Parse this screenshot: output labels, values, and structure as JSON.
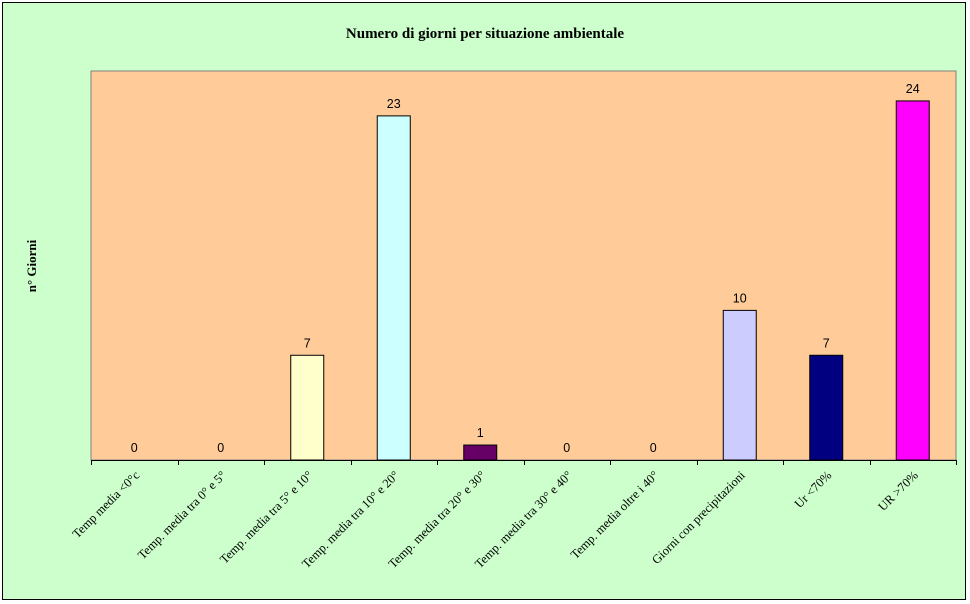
{
  "chart_data": {
    "type": "bar",
    "title": "Numero di giorni per situazione ambientale",
    "xlabel": "",
    "ylabel": "n° Giorni",
    "categories": [
      "Temp media <0°c",
      "Temp. media tra 0° e 5°",
      "Temp. media tra 5° e 10°",
      "Temp. media tra 10° e 20°",
      "Temp. media tra 20° e 30°",
      "Temp. media tra 30° e 40°",
      "Temp. media oltre i 40°",
      "Giorni con precipitazioni",
      "Ur <70%",
      "UR >70%"
    ],
    "values": [
      0,
      0,
      7,
      23,
      1,
      0,
      0,
      10,
      7,
      24
    ],
    "ylim": [
      0,
      26
    ],
    "grid": false,
    "legend": "none",
    "colors": {
      "chart_background": "#ccffcc",
      "plot_background": "#ffcc99",
      "bars": [
        "#ffffcc",
        "#ffffcc",
        "#ffffcc",
        "#ccffff",
        "#660066",
        "#ff8080",
        "#0066cc",
        "#ccccff",
        "#000080",
        "#ff00ff"
      ]
    }
  }
}
